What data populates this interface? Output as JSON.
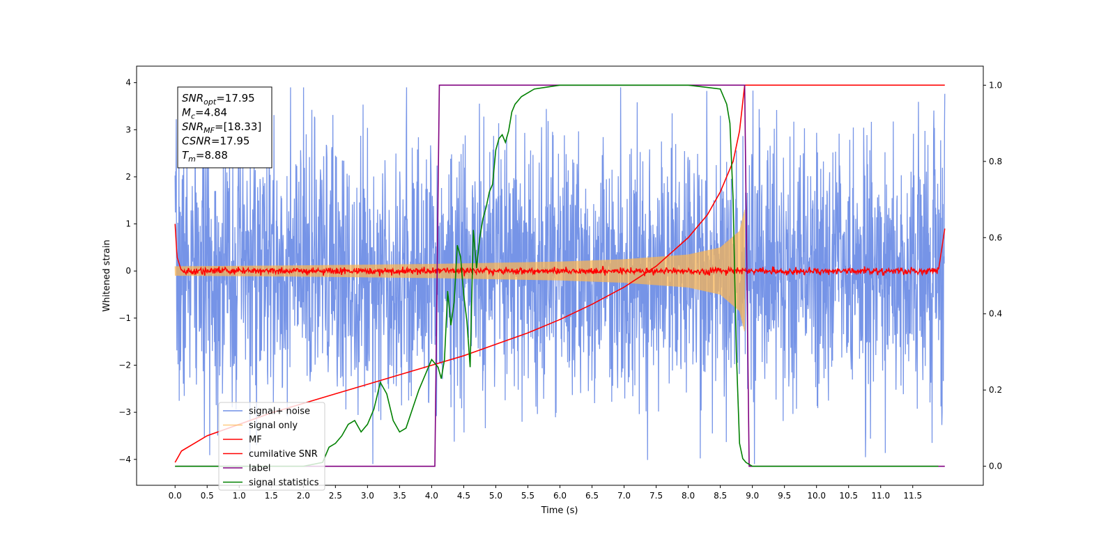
{
  "chart_data": {
    "type": "line",
    "title": "",
    "xlabel": "Time (s)",
    "ylabel": "Whitened strain",
    "xlim": [
      -0.6,
      12.6
    ],
    "ylim": [
      -4.55,
      4.35
    ],
    "y2lim": [
      -0.05,
      1.05
    ],
    "xticks": [
      0.0,
      0.5,
      1.0,
      1.5,
      2.0,
      2.5,
      3.0,
      3.5,
      4.0,
      4.5,
      5.0,
      5.5,
      6.0,
      6.5,
      7.0,
      7.5,
      8.0,
      8.5,
      9.0,
      9.5,
      10.0,
      10.5,
      11.0,
      11.5
    ],
    "xtick_labels": [
      "0.0",
      "0.5",
      "1.0",
      "1.5",
      "2.0",
      "2.5",
      "3.0",
      "3.5",
      "4.0",
      "4.5",
      "5.0",
      "5.5",
      "6.0",
      "6.5",
      "7.0",
      "7.5",
      "8.0",
      "8.5",
      "9.0",
      "9.5",
      "10.0",
      "10.5",
      "11.0",
      "11.5"
    ],
    "yticks": [
      -4,
      -3,
      -2,
      -1,
      0,
      1,
      2,
      3,
      4
    ],
    "ytick_labels": [
      "−4",
      "−3",
      "−2",
      "−1",
      "0",
      "1",
      "2",
      "3",
      "4"
    ],
    "y2ticks": [
      0.0,
      0.2,
      0.4,
      0.6,
      0.8,
      1.0
    ],
    "y2tick_labels": [
      "0.0",
      "0.2",
      "0.4",
      "0.6",
      "0.8",
      "1.0"
    ],
    "grid": false,
    "legend_position": "lower-left",
    "noise_range": [
      0.0,
      12.0
    ],
    "noise_amplitude": 1.4,
    "series": [
      {
        "name": "signal+ noise",
        "axis": "left",
        "color": "#6f8ee6",
        "kind": "noise"
      },
      {
        "name": "signal only",
        "axis": "left",
        "color": "#ffb74d",
        "kind": "chirp_envelope",
        "x": [
          0.0,
          2.0,
          4.0,
          6.0,
          7.0,
          8.0,
          8.5,
          8.8,
          8.88
        ],
        "amplitude": [
          0.1,
          0.12,
          0.15,
          0.2,
          0.25,
          0.35,
          0.5,
          0.85,
          1.3
        ]
      },
      {
        "name": "MF",
        "axis": "left",
        "color": "#ff0000",
        "kind": "noisy_baseline",
        "x": [
          0.0,
          0.03,
          0.1,
          11.9,
          12.0
        ],
        "y": [
          1.0,
          0.3,
          0.0,
          0.0,
          0.9
        ]
      },
      {
        "name": "cumilative SNR",
        "axis": "right",
        "color": "#ff0000",
        "x": [
          0.0,
          0.1,
          0.5,
          1.0,
          1.5,
          2.0,
          2.5,
          3.0,
          3.5,
          4.0,
          4.5,
          5.0,
          5.5,
          6.0,
          6.5,
          7.0,
          7.5,
          8.0,
          8.3,
          8.5,
          8.7,
          8.8,
          8.88,
          12.0
        ],
        "y": [
          0.01,
          0.04,
          0.08,
          0.11,
          0.14,
          0.165,
          0.19,
          0.215,
          0.24,
          0.265,
          0.29,
          0.32,
          0.35,
          0.385,
          0.425,
          0.47,
          0.525,
          0.6,
          0.66,
          0.72,
          0.8,
          0.88,
          1.0,
          1.0
        ]
      },
      {
        "name": "label",
        "axis": "right",
        "color": "#800080",
        "x": [
          0.0,
          4.05,
          4.12,
          8.88,
          8.95,
          12.0
        ],
        "y": [
          0.0,
          0.0,
          1.0,
          1.0,
          0.0,
          0.0
        ]
      },
      {
        "name": "signal statistics",
        "axis": "right",
        "color": "#008000",
        "x": [
          0.0,
          1.0,
          2.0,
          2.3,
          2.4,
          2.5,
          2.6,
          2.7,
          2.8,
          2.9,
          3.0,
          3.1,
          3.2,
          3.3,
          3.4,
          3.5,
          3.6,
          3.7,
          3.8,
          3.9,
          4.0,
          4.05,
          4.1,
          4.15,
          4.2,
          4.25,
          4.3,
          4.35,
          4.4,
          4.45,
          4.5,
          4.55,
          4.6,
          4.65,
          4.7,
          4.75,
          4.8,
          4.85,
          4.9,
          4.95,
          5.0,
          5.05,
          5.1,
          5.15,
          5.2,
          5.25,
          5.3,
          5.35,
          5.4,
          5.5,
          5.6,
          5.8,
          6.0,
          6.5,
          7.0,
          8.0,
          8.5,
          8.6,
          8.65,
          8.7,
          8.75,
          8.8,
          8.85,
          8.9,
          9.0,
          11.9
        ],
        "y": [
          0.0,
          0.0,
          0.0,
          0.01,
          0.05,
          0.06,
          0.08,
          0.11,
          0.12,
          0.09,
          0.11,
          0.15,
          0.22,
          0.19,
          0.12,
          0.09,
          0.1,
          0.15,
          0.2,
          0.24,
          0.28,
          0.27,
          0.26,
          0.23,
          0.28,
          0.46,
          0.37,
          0.43,
          0.58,
          0.55,
          0.45,
          0.38,
          0.26,
          0.62,
          0.52,
          0.6,
          0.65,
          0.68,
          0.72,
          0.74,
          0.83,
          0.86,
          0.87,
          0.85,
          0.88,
          0.93,
          0.95,
          0.96,
          0.97,
          0.98,
          0.99,
          0.995,
          1.0,
          1.0,
          1.0,
          1.0,
          0.99,
          0.95,
          0.9,
          0.7,
          0.3,
          0.06,
          0.02,
          0.01,
          0.0,
          0.0
        ]
      }
    ],
    "annotation": [
      {
        "base": "SNR",
        "sub": "opt",
        "value": "=17.95"
      },
      {
        "base": "M",
        "sub": "c",
        "value": "=4.84"
      },
      {
        "base": "SNR",
        "sub": "MF",
        "value": "=[18.33]"
      },
      {
        "base": "CSNR",
        "sub": "",
        "value": "=17.95"
      },
      {
        "base": "T",
        "sub": "m",
        "value": "=8.88"
      }
    ]
  }
}
